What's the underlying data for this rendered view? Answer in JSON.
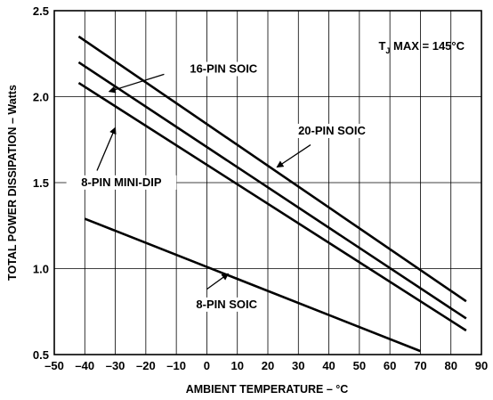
{
  "chart_data": {
    "type": "line",
    "xlabel": "AMBIENT TEMPERATURE – °C",
    "ylabel": "TOTAL POWER DISSIPATION – Watts",
    "xlim": [
      -50,
      90
    ],
    "ylim": [
      0.5,
      2.5
    ],
    "x_ticks": [
      -50,
      -40,
      -30,
      -20,
      -10,
      0,
      10,
      20,
      30,
      40,
      50,
      60,
      70,
      80,
      90
    ],
    "x_tick_labels": [
      "–50",
      "–40",
      "–30",
      "–20",
      "–10",
      "0",
      "10",
      "20",
      "30",
      "40",
      "50",
      "60",
      "70",
      "80",
      "90"
    ],
    "y_ticks": [
      0.5,
      1.0,
      1.5,
      2.0,
      2.5
    ],
    "y_tick_labels": [
      "0.5",
      "1.0",
      "1.5",
      "2.0",
      "2.5"
    ],
    "grid": true,
    "annotation": {
      "main": "T",
      "sub": "J",
      "rest": " MAX = 145°C"
    },
    "series": [
      {
        "name": "16-PIN SOIC",
        "x": [
          -42,
          85
        ],
        "y": [
          2.35,
          0.81
        ]
      },
      {
        "name": "20-PIN SOIC",
        "x": [
          -42,
          85
        ],
        "y": [
          2.2,
          0.71
        ]
      },
      {
        "name": "8-PIN MINI-DIP",
        "x": [
          -42,
          85
        ],
        "y": [
          2.08,
          0.64
        ]
      },
      {
        "name": "8-PIN SOIC",
        "x": [
          -40,
          70
        ],
        "y": [
          1.29,
          0.52
        ]
      }
    ],
    "callouts": [
      {
        "series": 0,
        "label": "16-PIN SOIC",
        "text_at": [
          5.5,
          2.14
        ],
        "anchor": "middle",
        "arrow_from": [
          -14,
          2.13
        ],
        "arrow_to": [
          -32,
          2.03
        ]
      },
      {
        "series": 1,
        "label": "20-PIN SOIC",
        "text_at": [
          41,
          1.78
        ],
        "anchor": "middle",
        "arrow_from": [
          34,
          1.72
        ],
        "arrow_to": [
          23,
          1.59
        ]
      },
      {
        "series": 2,
        "label": "8-PIN MINI-DIP",
        "text_at": [
          -28,
          1.48
        ],
        "anchor": "middle",
        "arrow_from": [
          -36,
          1.57
        ],
        "arrow_to": [
          -30,
          1.82
        ]
      },
      {
        "series": 3,
        "label": "8-PIN SOIC",
        "text_at": [
          6.5,
          0.77
        ],
        "anchor": "middle",
        "arrow_from": [
          0,
          0.88
        ],
        "arrow_to": [
          7,
          0.97
        ]
      }
    ]
  }
}
